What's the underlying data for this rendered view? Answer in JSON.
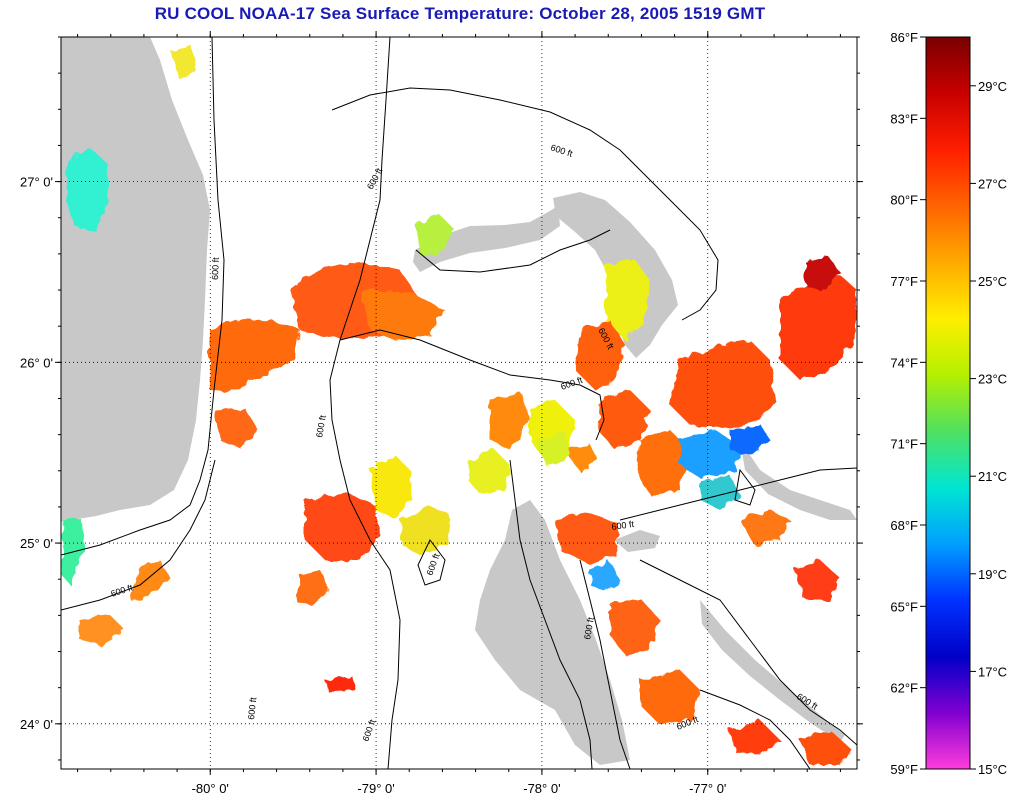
{
  "title": "RU COOL  NOAA-17  Sea Surface Temperature:  October 28, 2005 1519 GMT",
  "map": {
    "lon_range": [
      -80.9,
      -76.1
    ],
    "lat_range": [
      23.75,
      27.8
    ],
    "lon_ticks": [
      {
        "value": -80,
        "label": "-80° 0'"
      },
      {
        "value": -79,
        "label": "-79° 0'"
      },
      {
        "value": -78,
        "label": "-78° 0'"
      },
      {
        "value": -77,
        "label": "-77° 0'"
      }
    ],
    "lat_ticks": [
      {
        "value": 27,
        "label": "27° 0'"
      },
      {
        "value": 26,
        "label": "26° 0'"
      },
      {
        "value": 25,
        "label": "25° 0'"
      },
      {
        "value": 24,
        "label": "24° 0'"
      }
    ],
    "contour_label": "600 ft",
    "land_color": "#c8c8c8",
    "contour_color": "#000000"
  },
  "colorbar": {
    "fahrenheit": [
      "86°F",
      "83°F",
      "80°F",
      "77°F",
      "74°F",
      "71°F",
      "68°F",
      "65°F",
      "62°F",
      "59°F"
    ],
    "celsius": [
      "29°C",
      "27°C",
      "25°C",
      "23°C",
      "21°C",
      "19°C",
      "17°C",
      "15°C"
    ],
    "gradient": [
      "#7a0000",
      "#c80000",
      "#ff1e00",
      "#ff6400",
      "#ffaa00",
      "#ffee00",
      "#b4f000",
      "#50e060",
      "#00e6d2",
      "#00a0ff",
      "#0032ff",
      "#0000c8",
      "#8000d0",
      "#ff3cdc"
    ]
  }
}
